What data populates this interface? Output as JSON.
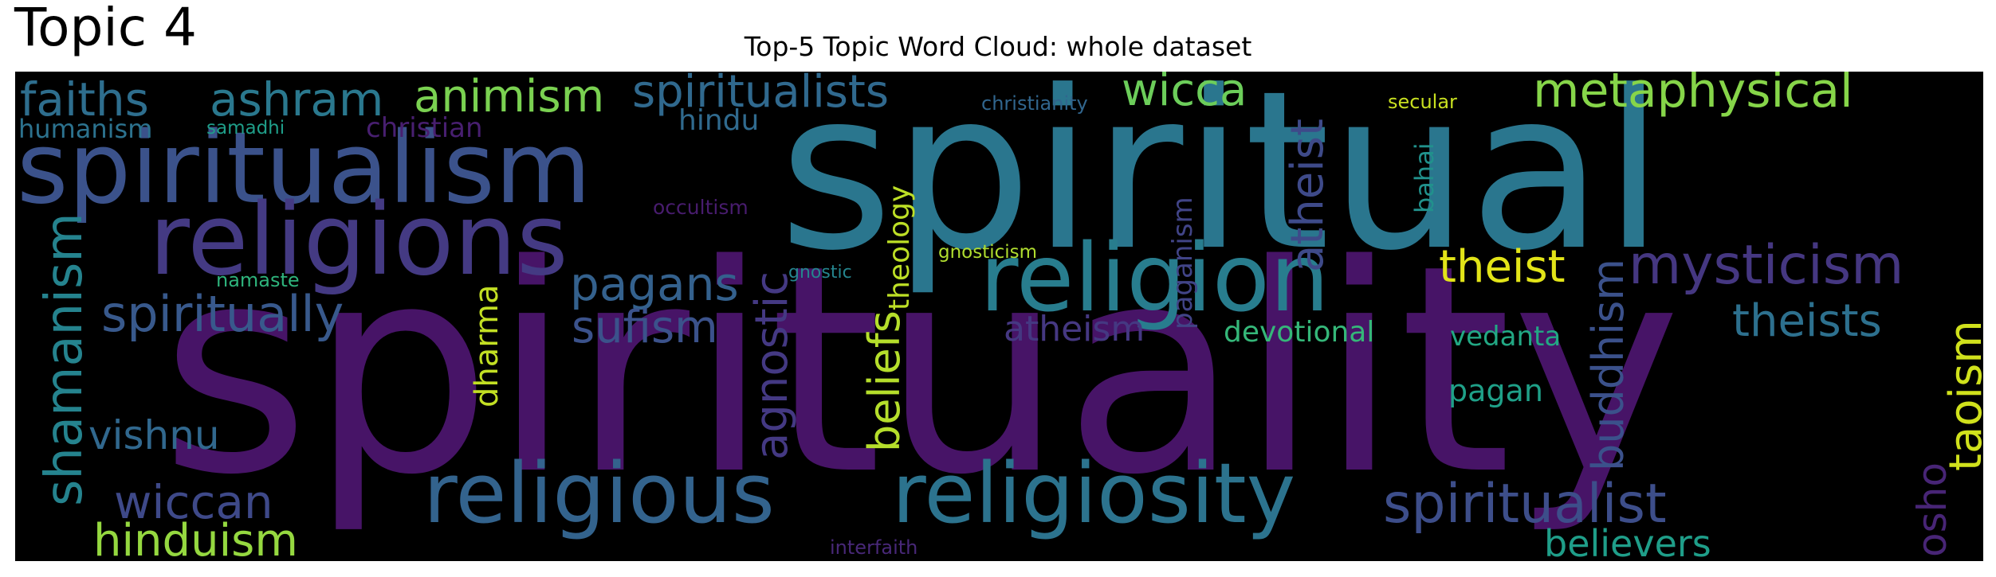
{
  "heading": "Topic 4",
  "title": "Top-5 Topic Word Cloud: whole dataset",
  "words": [
    {
      "text": "spirituality",
      "color": "#471467"
    },
    {
      "text": "spiritual",
      "color": "#2a768e"
    },
    {
      "text": "spiritualism",
      "color": "#3b528b"
    },
    {
      "text": "religions",
      "color": "#443a83"
    },
    {
      "text": "religion",
      "color": "#287d8e"
    },
    {
      "text": "religious",
      "color": "#33638d"
    },
    {
      "text": "religiosity",
      "color": "#2c738e"
    },
    {
      "text": "spiritualist",
      "color": "#3d4e8a"
    },
    {
      "text": "mysticism",
      "color": "#453781"
    },
    {
      "text": "faiths",
      "color": "#2e6e8e"
    },
    {
      "text": "ashram",
      "color": "#2a788e"
    },
    {
      "text": "animism",
      "color": "#7ad151"
    },
    {
      "text": "spiritualists",
      "color": "#30698e"
    },
    {
      "text": "wicca",
      "color": "#6ccd5a"
    },
    {
      "text": "metaphysical",
      "color": "#86d549"
    },
    {
      "text": "atheist",
      "color": "#3e4a89"
    },
    {
      "text": "theist",
      "color": "#e2e418"
    },
    {
      "text": "theists",
      "color": "#2d708e"
    },
    {
      "text": "taoism",
      "color": "#d0e11c"
    },
    {
      "text": "buddhism",
      "color": "#3b518b"
    },
    {
      "text": "believers",
      "color": "#1f9e89"
    },
    {
      "text": "osho",
      "color": "#482576"
    },
    {
      "text": "shamanism",
      "color": "#25838e"
    },
    {
      "text": "spiritually",
      "color": "#38598c"
    },
    {
      "text": "pagans",
      "color": "#34618d"
    },
    {
      "text": "sufism",
      "color": "#3b528b"
    },
    {
      "text": "agnostic",
      "color": "#443983"
    },
    {
      "text": "beliefs",
      "color": "#b5de2b"
    },
    {
      "text": "theology",
      "color": "#bddf26"
    },
    {
      "text": "paganism",
      "color": "#414487"
    },
    {
      "text": "atheism",
      "color": "#453882"
    },
    {
      "text": "devotional",
      "color": "#35b779"
    },
    {
      "text": "vedanta",
      "color": "#22a884"
    },
    {
      "text": "pagan",
      "color": "#1fa088"
    },
    {
      "text": "bahai",
      "color": "#21918c"
    },
    {
      "text": "dharma",
      "color": "#c2df23"
    },
    {
      "text": "vishnu",
      "color": "#31688e"
    },
    {
      "text": "wiccan",
      "color": "#3e4989"
    },
    {
      "text": "hinduism",
      "color": "#95d840"
    },
    {
      "text": "humanism",
      "color": "#2c728e"
    },
    {
      "text": "samadhi",
      "color": "#1f9e89"
    },
    {
      "text": "christian",
      "color": "#481f70"
    },
    {
      "text": "hindu",
      "color": "#306a8e"
    },
    {
      "text": "christianity",
      "color": "#31668e"
    },
    {
      "text": "secular",
      "color": "#c8e020"
    },
    {
      "text": "occultism",
      "color": "#481c6e"
    },
    {
      "text": "gnostic",
      "color": "#25858e"
    },
    {
      "text": "gnosticism",
      "color": "#b0dd2f"
    },
    {
      "text": "namaste",
      "color": "#2eb37c"
    },
    {
      "text": "interfaith",
      "color": "#482878"
    }
  ]
}
